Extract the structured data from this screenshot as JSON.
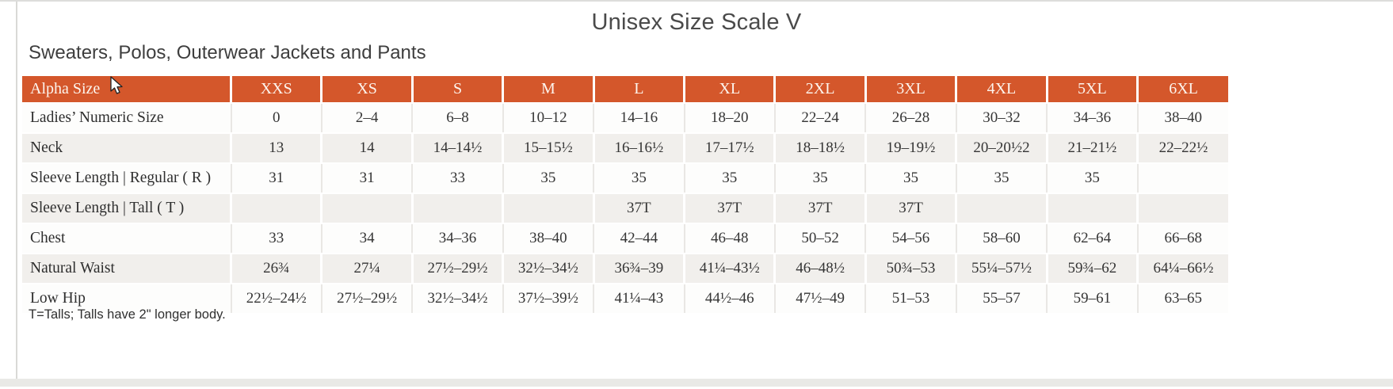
{
  "page": {
    "title": "Unisex Size Scale V",
    "subtitle": "Sweaters, Polos, Outerwear Jackets and Pants",
    "footnote": "T=Talls; Talls have 2\" longer body."
  },
  "colors": {
    "header_bg": "#d4572b",
    "header_text": "#fdf5ee",
    "row_stripe": "#f1efec",
    "body_text": "#353535",
    "title_text": "#4a4a4a"
  },
  "icons": {
    "cursor": "mouse-pointer-arrow"
  },
  "chart_data": {
    "type": "table",
    "columns": [
      "Alpha Size",
      "XXS",
      "XS",
      "S",
      "M",
      "L",
      "XL",
      "2XL",
      "3XL",
      "4XL",
      "5XL",
      "6XL"
    ],
    "rows": [
      {
        "label": "Ladies’ Numeric Size",
        "values": [
          "0",
          "2–4",
          "6–8",
          "10–12",
          "14–16",
          "18–20",
          "22–24",
          "26–28",
          "30–32",
          "34–36",
          "38–40"
        ]
      },
      {
        "label": "Neck",
        "values": [
          "13",
          "14",
          "14–14½",
          "15–15½",
          "16–16½",
          "17–17½",
          "18–18½",
          "19–19½",
          "20–20½2",
          "21–21½",
          "22–22½"
        ]
      },
      {
        "label": "Sleeve Length | Regular ( R )",
        "values": [
          "31",
          "31",
          "33",
          "35",
          "35",
          "35",
          "35",
          "35",
          "35",
          "35",
          ""
        ]
      },
      {
        "label": "Sleeve Length | Tall ( T )",
        "values": [
          "",
          "",
          "",
          "",
          "37T",
          "37T",
          "37T",
          "37T",
          "",
          "",
          ""
        ]
      },
      {
        "label": "Chest",
        "values": [
          "33",
          "34",
          "34–36",
          "38–40",
          "42–44",
          "46–48",
          "50–52",
          "54–56",
          "58–60",
          "62–64",
          "66–68"
        ]
      },
      {
        "label": "Natural Waist",
        "values": [
          "26¾",
          "27¼",
          "27½–29½",
          "32½–34½",
          "36¾–39",
          "41¼–43½",
          "46–48½",
          "50¾–53",
          "55¼–57½",
          "59¾–62",
          "64¼–66½"
        ]
      },
      {
        "label": "Low Hip",
        "values": [
          "22½–24½",
          "27½–29½",
          "32½–34½",
          "37½–39½",
          "41¼–43",
          "44½–46",
          "47½–49",
          "51–53",
          "55–57",
          "59–61",
          "63–65"
        ]
      }
    ]
  }
}
